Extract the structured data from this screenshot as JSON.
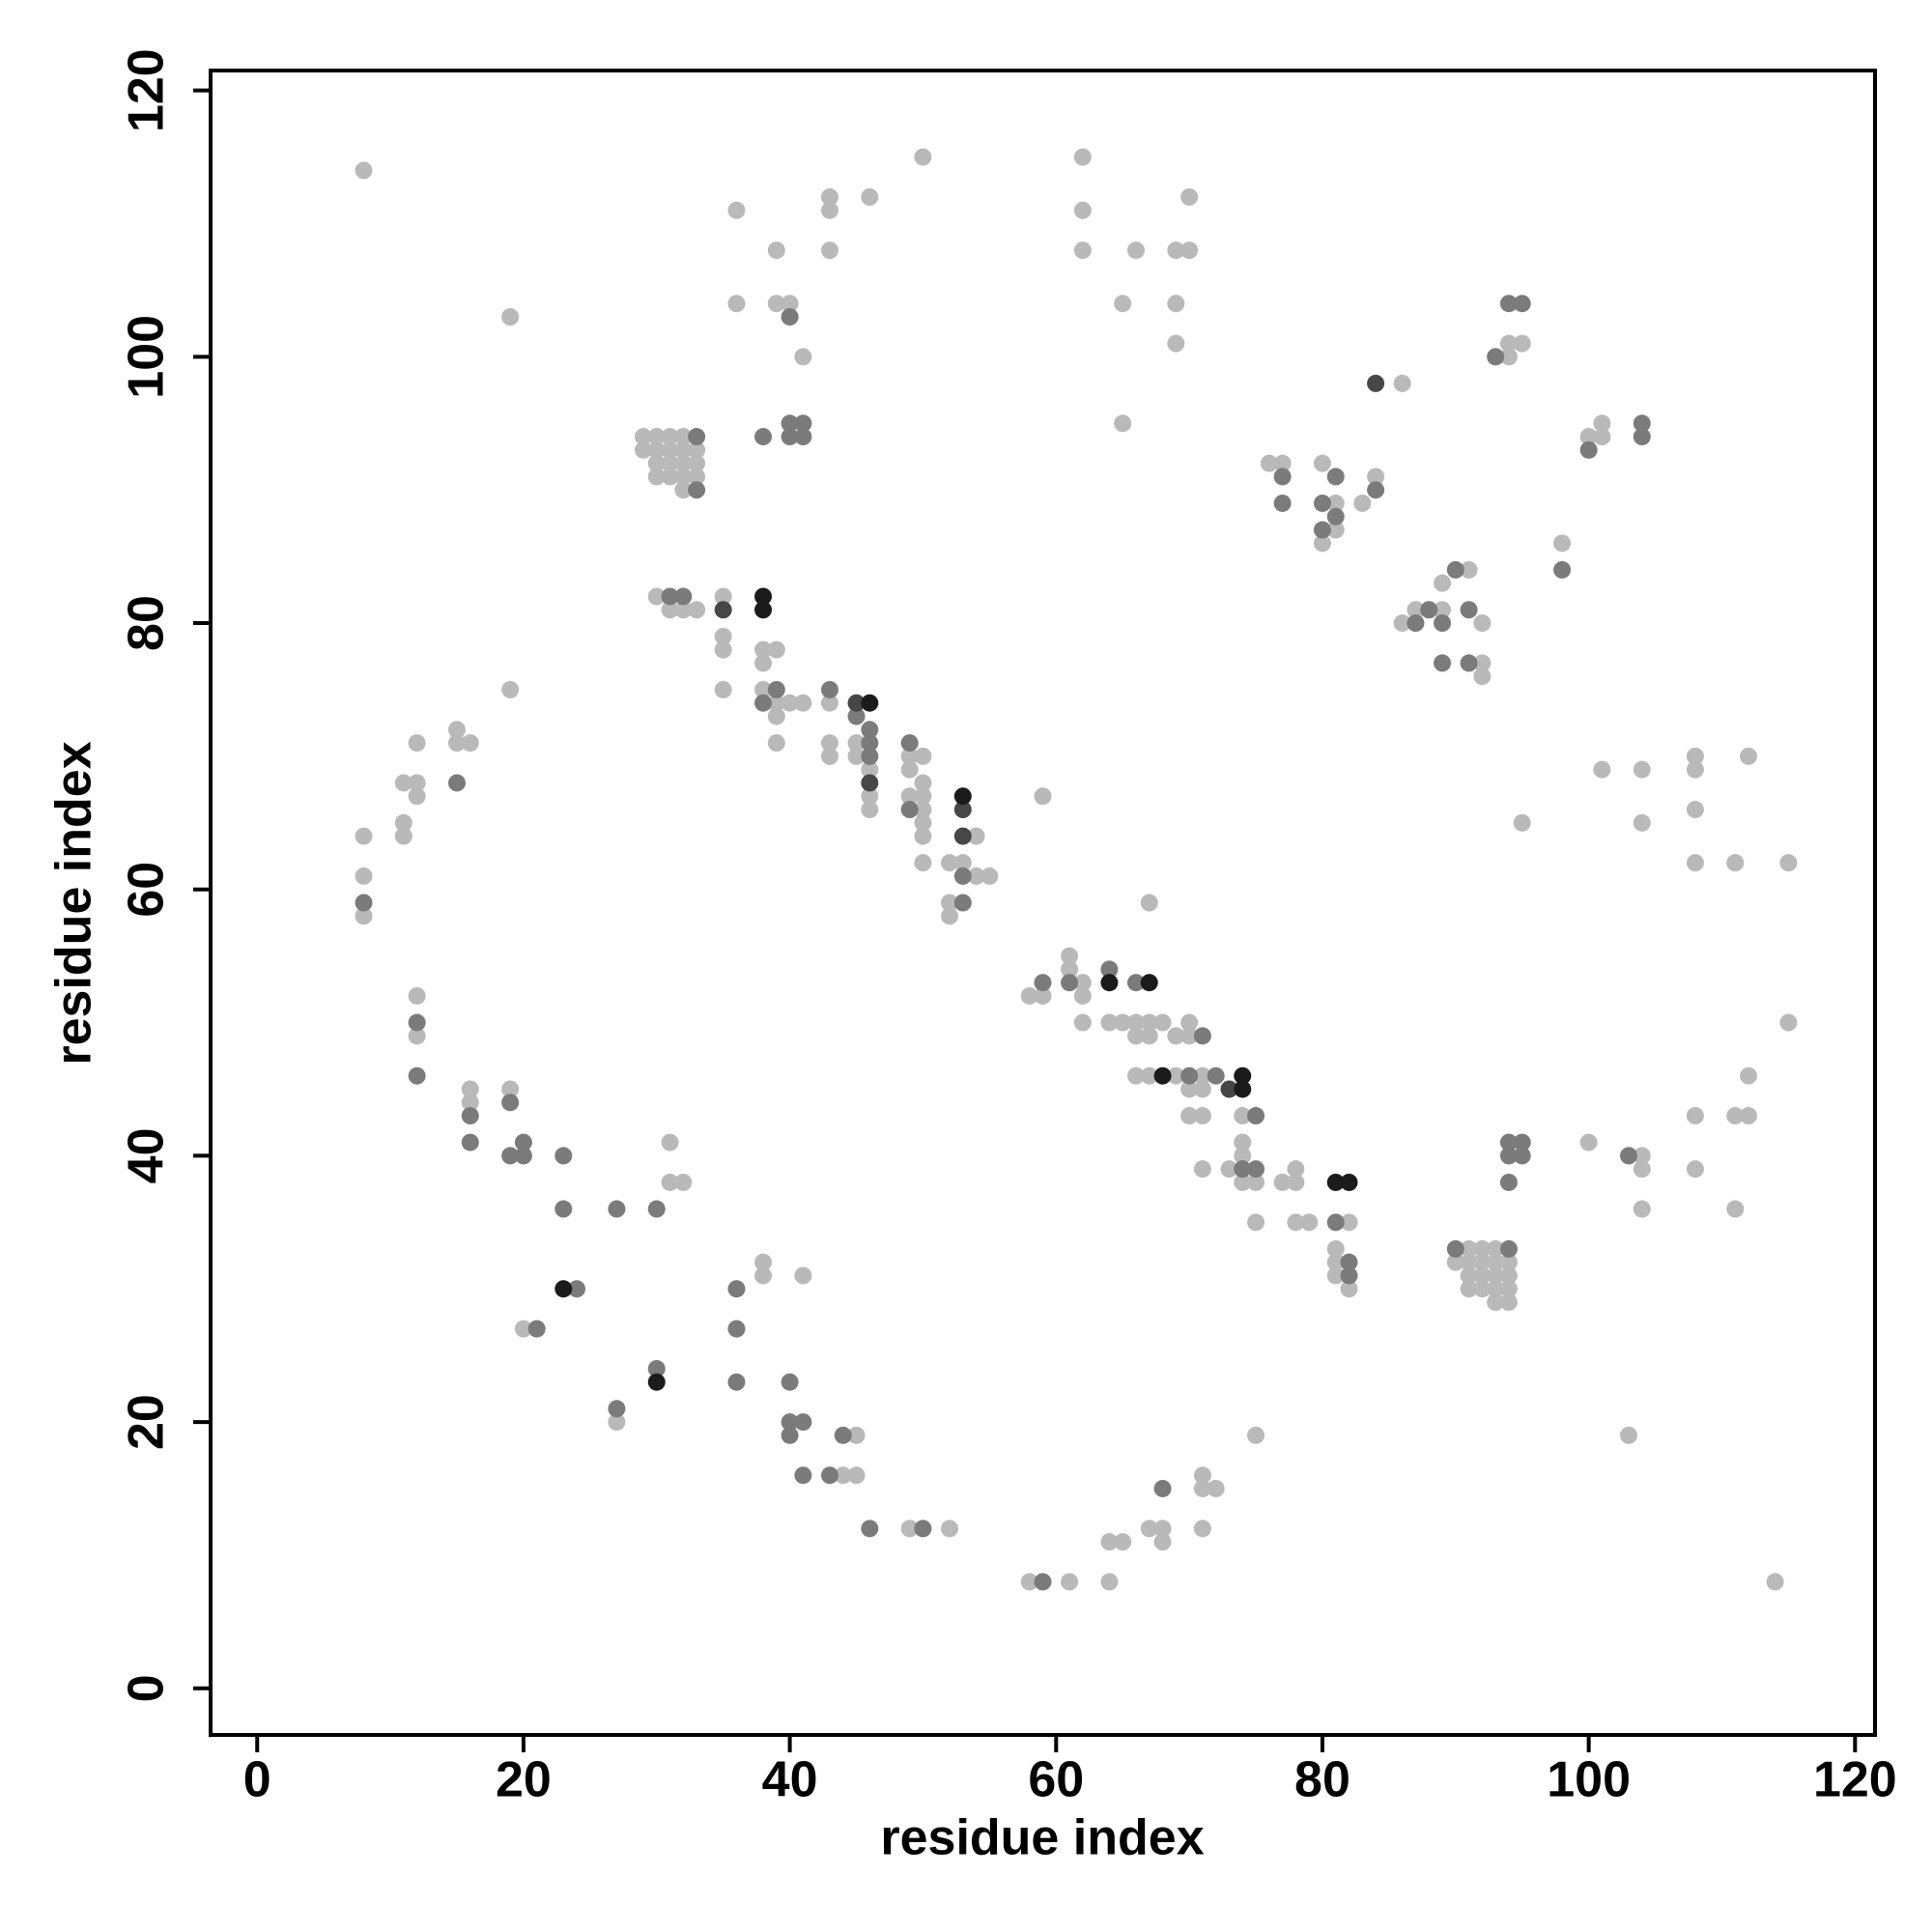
{
  "chart_data": {
    "type": "scatter",
    "xlabel": "residue index",
    "ylabel": "residue index",
    "xlim": [
      -3.5,
      121.5
    ],
    "ylim": [
      -3.5,
      121.5
    ],
    "xticks": [
      0,
      20,
      40,
      60,
      80,
      100,
      120
    ],
    "yticks": [
      0,
      20,
      40,
      60,
      80,
      100,
      120
    ],
    "series": [
      {
        "color": "#b9b9b9",
        "x": [
          8,
          50,
          62,
          36,
          43,
          43,
          46,
          39,
          43,
          62,
          62,
          66,
          69,
          70,
          70,
          36,
          39,
          40,
          65,
          69,
          69,
          41,
          19,
          65,
          86,
          94,
          95,
          94,
          101,
          101,
          100,
          76,
          77,
          80,
          81,
          80,
          81,
          84,
          83,
          98,
          91,
          89,
          86,
          87,
          89,
          92,
          92,
          92,
          30,
          31,
          32,
          33,
          35,
          35,
          35,
          35,
          38,
          39,
          38,
          38,
          39,
          40,
          41,
          39,
          39,
          43,
          43,
          43,
          45,
          45,
          46,
          46,
          46,
          49,
          50,
          49,
          50,
          49,
          50,
          50,
          50,
          50,
          50,
          54,
          52,
          53,
          54,
          55,
          52,
          52,
          59,
          59,
          58,
          61,
          61,
          62,
          62,
          62,
          64,
          65,
          66,
          67,
          68,
          66,
          67,
          69,
          70,
          70,
          67,
          66,
          67,
          69,
          71,
          70,
          71,
          70,
          71,
          74,
          74,
          74,
          71,
          73,
          74,
          75,
          77,
          78,
          78,
          75,
          78,
          79,
          82,
          81,
          81,
          81,
          82,
          100,
          104,
          104,
          104,
          108,
          108,
          111,
          112,
          112,
          111,
          115,
          104,
          101,
          104,
          95,
          108,
          108,
          108,
          108,
          111,
          112,
          115,
          103,
          114,
          8,
          8,
          8,
          11,
          12,
          12,
          12,
          11,
          11,
          15,
          15,
          16,
          19,
          12,
          12,
          16,
          16,
          19,
          31,
          31,
          32,
          20,
          27,
          38,
          38,
          41,
          45,
          44,
          45,
          49,
          52,
          58,
          61,
          64,
          64,
          65,
          67,
          68,
          68,
          71,
          71,
          72,
          71,
          75,
          29,
          29,
          30,
          30,
          30,
          30,
          31,
          31,
          31,
          31,
          32,
          32,
          32,
          32,
          32,
          33,
          33,
          33,
          90,
          91,
          91,
          91,
          91,
          92,
          92,
          92,
          92,
          93,
          93,
          93,
          93,
          93,
          94,
          94,
          94,
          94
        ],
        "y": [
          114,
          115,
          115,
          111,
          112,
          111,
          112,
          108,
          108,
          111,
          108,
          108,
          108,
          108,
          112,
          104,
          104,
          104,
          104,
          104,
          101,
          100,
          103,
          95,
          98,
          101,
          101,
          100,
          95,
          94,
          94,
          92,
          92,
          92,
          89,
          86,
          87,
          91,
          89,
          86,
          84,
          83,
          80,
          81,
          81,
          80,
          77,
          76,
          82,
          81,
          81,
          81,
          82,
          79,
          78,
          75,
          78,
          78,
          77,
          75,
          74,
          74,
          74,
          73,
          71,
          74,
          71,
          70,
          71,
          70,
          69,
          67,
          66,
          70,
          70,
          69,
          68,
          67,
          67,
          66,
          65,
          64,
          62,
          64,
          62,
          62,
          61,
          61,
          59,
          58,
          67,
          52,
          52,
          55,
          54,
          53,
          52,
          50,
          50,
          50,
          50,
          50,
          50,
          49,
          49,
          49,
          50,
          49,
          59,
          46,
          46,
          46,
          46,
          45,
          45,
          43,
          43,
          43,
          41,
          40,
          39,
          39,
          38,
          38,
          38,
          38,
          39,
          35,
          35,
          35,
          35,
          33,
          32,
          31,
          30,
          41,
          40,
          39,
          36,
          43,
          39,
          43,
          43,
          46,
          36,
          50,
          69,
          69,
          65,
          65,
          70,
          69,
          66,
          62,
          62,
          70,
          62,
          19,
          8,
          64,
          61,
          58,
          68,
          68,
          67,
          71,
          65,
          64,
          72,
          71,
          71,
          75,
          52,
          49,
          45,
          44,
          45,
          41,
          38,
          38,
          27,
          20,
          32,
          31,
          31,
          19,
          16,
          16,
          12,
          12,
          8,
          8,
          8,
          11,
          11,
          12,
          12,
          11,
          16,
          15,
          15,
          12,
          19,
          94,
          93,
          94,
          93,
          92,
          91,
          94,
          93,
          92,
          91,
          94,
          93,
          92,
          91,
          90,
          93,
          92,
          91,
          32,
          33,
          32,
          31,
          30,
          33,
          32,
          31,
          30,
          33,
          32,
          31,
          30,
          29,
          32,
          31,
          30,
          29
        ]
      },
      {
        "color": "#7b7b7b",
        "x": [
          40,
          93,
          94,
          95,
          40,
          41,
          40,
          41,
          38,
          33,
          33,
          100,
          104,
          104,
          77,
          77,
          81,
          80,
          81,
          80,
          84,
          98,
          90,
          87,
          88,
          89,
          91,
          89,
          91,
          31,
          32,
          39,
          38,
          43,
          45,
          46,
          46,
          46,
          49,
          49,
          53,
          53,
          59,
          61,
          64,
          66,
          71,
          70,
          72,
          75,
          74,
          75,
          81,
          82,
          82,
          90,
          94,
          94,
          95,
          94,
          95,
          94,
          103,
          8,
          15,
          12,
          12,
          16,
          16,
          19,
          19,
          20,
          20,
          23,
          23,
          27,
          30,
          24,
          21,
          30,
          27,
          36,
          36,
          36,
          40,
          40,
          41,
          40,
          44,
          41,
          43,
          46,
          50,
          59,
          68
        ],
        "y": [
          103,
          100,
          104,
          104,
          95,
          95,
          94,
          94,
          94,
          94,
          90,
          93,
          95,
          94,
          91,
          89,
          91,
          89,
          88,
          87,
          90,
          84,
          84,
          80,
          81,
          80,
          81,
          77,
          77,
          82,
          82,
          75,
          74,
          75,
          73,
          72,
          71,
          70,
          71,
          66,
          61,
          59,
          53,
          53,
          54,
          53,
          49,
          46,
          46,
          43,
          39,
          39,
          35,
          32,
          31,
          33,
          33,
          41,
          41,
          40,
          40,
          38,
          40,
          59,
          68,
          50,
          46,
          43,
          41,
          44,
          40,
          41,
          40,
          40,
          36,
          36,
          36,
          30,
          27,
          24,
          21,
          30,
          27,
          23,
          23,
          20,
          20,
          19,
          19,
          16,
          16,
          12,
          12,
          8,
          15
        ]
      },
      {
        "color": "#474747",
        "x": [
          84,
          35,
          45,
          46,
          53,
          53,
          73
        ],
        "y": [
          98,
          81,
          74,
          68,
          66,
          64,
          45
        ]
      },
      {
        "color": "#1b1b1b",
        "x": [
          38,
          38,
          46,
          53,
          64,
          67,
          68,
          74,
          74,
          81,
          82,
          23,
          30
        ],
        "y": [
          82,
          81,
          74,
          67,
          53,
          53,
          46,
          46,
          45,
          38,
          38,
          30,
          23
        ]
      }
    ]
  }
}
